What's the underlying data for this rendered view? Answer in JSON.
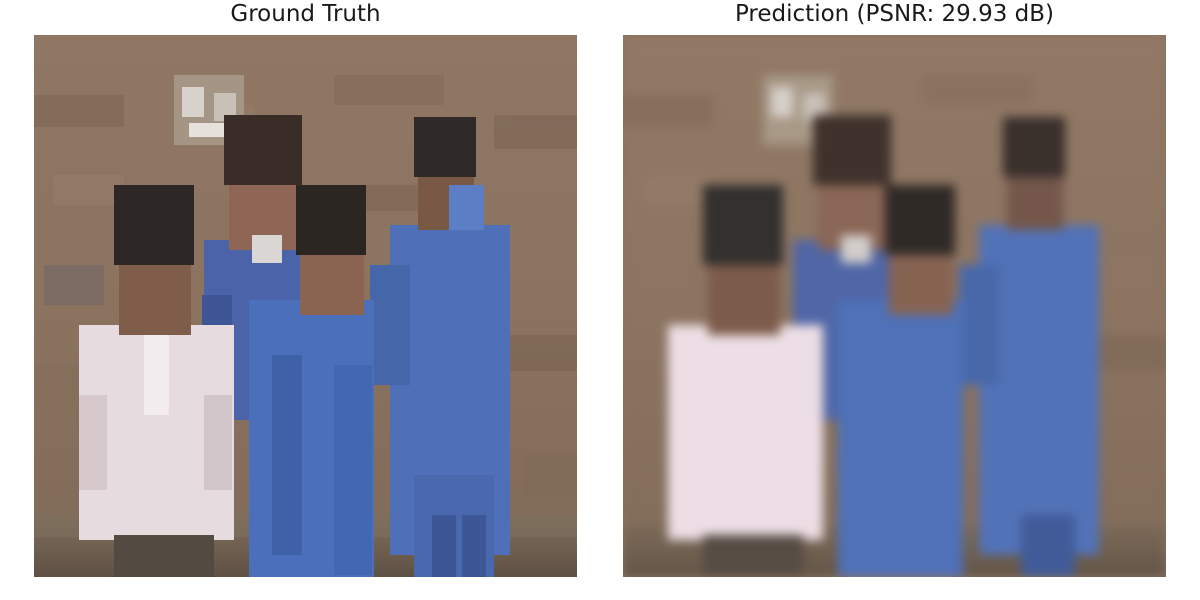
{
  "figure": {
    "panels": [
      {
        "title": "Ground Truth"
      },
      {
        "title": "Prediction (PSNR: 29.93 dB)"
      }
    ]
  }
}
